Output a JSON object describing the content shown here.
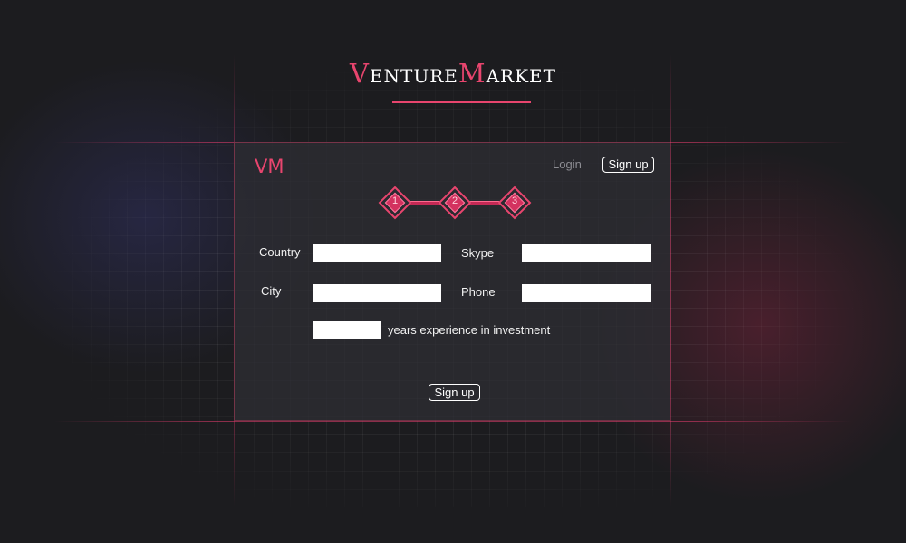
{
  "brand": {
    "first_cap": "V",
    "first_rest": "ENTURE",
    "second_cap": "M",
    "second_rest": "ARKET"
  },
  "panel": {
    "logo": "VM",
    "nav": {
      "login_label": "Login",
      "signup_label": "Sign up"
    },
    "steps": [
      "1",
      "2",
      "3"
    ],
    "form": {
      "country_label": "Country",
      "country_value": "",
      "skype_label": "Skype",
      "skype_value": "",
      "city_label": "City",
      "city_value": "",
      "phone_label": "Phone",
      "phone_value": "",
      "experience_value": "",
      "experience_suffix": "years experience in investment"
    },
    "submit_label": "Sign up"
  },
  "colors": {
    "accent": "#e8456e",
    "background": "#1c1c1f",
    "panel": "#2c2c32"
  }
}
